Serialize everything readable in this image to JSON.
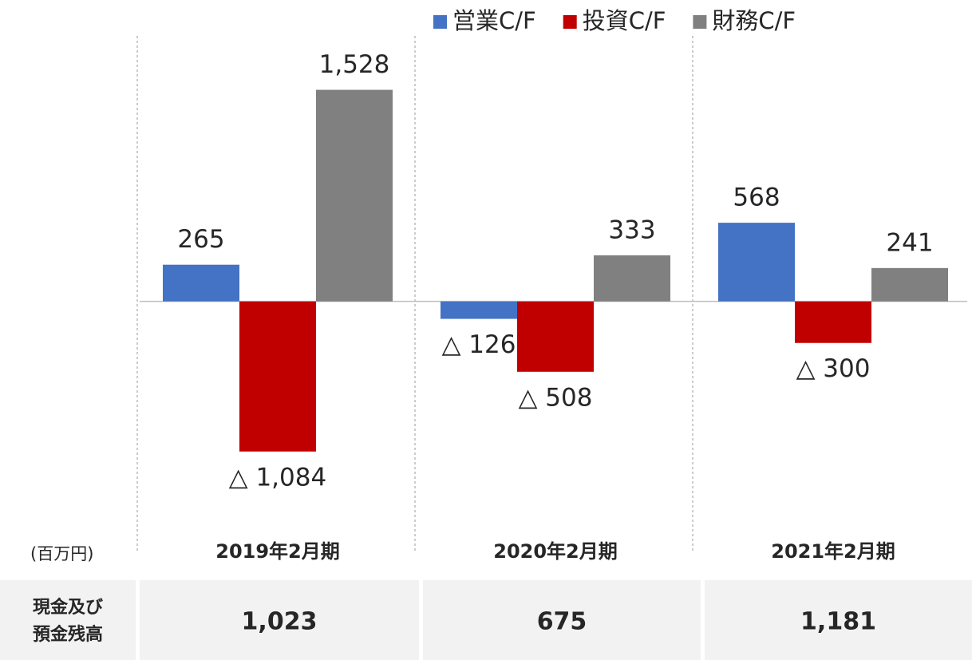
{
  "chart_data": {
    "type": "bar",
    "categories": [
      "2019年2月期",
      "2020年2月期",
      "2021年2月期"
    ],
    "series": [
      {
        "name": "営業C/F",
        "color": "#4472c4",
        "values": [
          265,
          -126,
          568
        ],
        "value_labels": [
          "265",
          "△ 126",
          "568"
        ]
      },
      {
        "name": "投資C/F",
        "color": "#c00000",
        "values": [
          -1084,
          -508,
          -300
        ],
        "value_labels": [
          "△ 1,084",
          "△ 508",
          "△ 300"
        ]
      },
      {
        "name": "財務C/F",
        "color": "#808080",
        "values": [
          1528,
          333,
          241
        ],
        "value_labels": [
          "1,528",
          "333",
          "241"
        ]
      }
    ],
    "ylim": [
      -1800,
      1900
    ],
    "legend": "top-right",
    "unit_label": "(百万円)",
    "table": {
      "row_label": [
        "現金及び",
        "預金残高"
      ],
      "cells": [
        "1,023",
        "675",
        "1,181"
      ]
    }
  }
}
